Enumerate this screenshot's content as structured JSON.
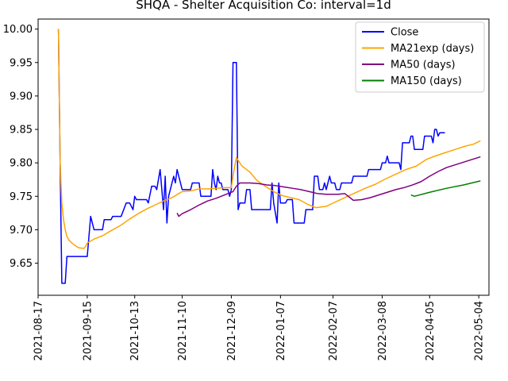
{
  "chart_data": {
    "type": "line",
    "title": "SHQA - Shelter Acquisition Co: interval=1d",
    "xlabel": "",
    "ylabel": "",
    "x_ticks": [
      "2021-08-17",
      "2021-09-15",
      "2021-10-13",
      "2021-11-10",
      "2021-12-09",
      "2022-01-07",
      "2022-02-07",
      "2022-03-08",
      "2022-04-05",
      "2022-05-04"
    ],
    "y_ticks": [
      "9.65",
      "9.70",
      "9.75",
      "9.80",
      "9.85",
      "9.90",
      "9.95",
      "10.00"
    ],
    "xlim": [
      "2021-08-17",
      "2022-05-10"
    ],
    "ylim": [
      9.602,
      10.015
    ],
    "grid": false,
    "legend_position": "top-right",
    "series": [
      {
        "name": "Close",
        "color": "#0000ff",
        "points": [
          [
            "2021-08-29",
            10.0
          ],
          [
            "2021-08-30",
            9.8
          ],
          [
            "2021-08-31",
            9.62
          ],
          [
            "2021-09-02",
            9.62
          ],
          [
            "2021-09-03",
            9.66
          ],
          [
            "2021-09-08",
            9.66
          ],
          [
            "2021-09-13",
            9.66
          ],
          [
            "2021-09-15",
            9.66
          ],
          [
            "2021-09-16",
            9.69
          ],
          [
            "2021-09-17",
            9.72
          ],
          [
            "2021-09-19",
            9.7
          ],
          [
            "2021-09-24",
            9.7
          ],
          [
            "2021-09-25",
            9.715
          ],
          [
            "2021-09-29",
            9.715
          ],
          [
            "2021-09-30",
            9.72
          ],
          [
            "2021-10-05",
            9.72
          ],
          [
            "2021-10-08",
            9.74
          ],
          [
            "2021-10-10",
            9.74
          ],
          [
            "2021-10-12",
            9.73
          ],
          [
            "2021-10-13",
            9.75
          ],
          [
            "2021-10-14",
            9.745
          ],
          [
            "2021-10-20",
            9.745
          ],
          [
            "2021-10-21",
            9.74
          ],
          [
            "2021-10-23",
            9.765
          ],
          [
            "2021-10-25",
            9.765
          ],
          [
            "2021-10-26",
            9.76
          ],
          [
            "2021-10-28",
            9.79
          ],
          [
            "2021-10-29",
            9.76
          ],
          [
            "2021-10-30",
            9.73
          ],
          [
            "2021-10-31",
            9.78
          ],
          [
            "2021-11-01",
            9.71
          ],
          [
            "2021-11-02",
            9.75
          ],
          [
            "2021-11-04",
            9.77
          ],
          [
            "2021-11-05",
            9.78
          ],
          [
            "2021-11-06",
            9.77
          ],
          [
            "2021-11-07",
            9.79
          ],
          [
            "2021-11-08",
            9.78
          ],
          [
            "2021-11-10",
            9.76
          ],
          [
            "2021-11-15",
            9.76
          ],
          [
            "2021-11-16",
            9.77
          ],
          [
            "2021-11-20",
            9.77
          ],
          [
            "2021-11-21",
            9.75
          ],
          [
            "2021-11-27",
            9.75
          ],
          [
            "2021-11-28",
            9.79
          ],
          [
            "2021-11-29",
            9.77
          ],
          [
            "2021-11-30",
            9.76
          ],
          [
            "2021-12-01",
            9.78
          ],
          [
            "2021-12-02",
            9.77
          ],
          [
            "2021-12-03",
            9.77
          ],
          [
            "2021-12-04",
            9.76
          ],
          [
            "2021-12-07",
            9.76
          ],
          [
            "2021-12-08",
            9.75
          ],
          [
            "2021-12-09",
            9.76
          ],
          [
            "2021-12-10",
            9.95
          ],
          [
            "2021-12-12",
            9.95
          ],
          [
            "2021-12-13",
            9.73
          ],
          [
            "2021-12-14",
            9.74
          ],
          [
            "2021-12-17",
            9.74
          ],
          [
            "2021-12-18",
            9.76
          ],
          [
            "2021-12-20",
            9.76
          ],
          [
            "2021-12-21",
            9.73
          ],
          [
            "2022-01-01",
            9.73
          ],
          [
            "2022-01-02",
            9.77
          ],
          [
            "2022-01-03",
            9.74
          ],
          [
            "2022-01-05",
            9.71
          ],
          [
            "2022-01-06",
            9.77
          ],
          [
            "2022-01-07",
            9.74
          ],
          [
            "2022-01-10",
            9.74
          ],
          [
            "2022-01-11",
            9.745
          ],
          [
            "2022-01-14",
            9.745
          ],
          [
            "2022-01-15",
            9.71
          ],
          [
            "2022-01-21",
            9.71
          ],
          [
            "2022-01-22",
            9.73
          ],
          [
            "2022-01-26",
            9.73
          ],
          [
            "2022-01-27",
            9.78
          ],
          [
            "2022-01-29",
            9.78
          ],
          [
            "2022-01-30",
            9.76
          ],
          [
            "2022-02-01",
            9.76
          ],
          [
            "2022-02-02",
            9.77
          ],
          [
            "2022-02-03",
            9.76
          ],
          [
            "2022-02-05",
            9.78
          ],
          [
            "2022-02-06",
            9.77
          ],
          [
            "2022-02-08",
            9.77
          ],
          [
            "2022-02-09",
            9.76
          ],
          [
            "2022-02-11",
            9.76
          ],
          [
            "2022-02-12",
            9.77
          ],
          [
            "2022-02-18",
            9.77
          ],
          [
            "2022-02-19",
            9.78
          ],
          [
            "2022-02-27",
            9.78
          ],
          [
            "2022-02-28",
            9.79
          ],
          [
            "2022-03-07",
            9.79
          ],
          [
            "2022-03-08",
            9.8
          ],
          [
            "2022-03-10",
            9.8
          ],
          [
            "2022-03-11",
            9.81
          ],
          [
            "2022-03-12",
            9.8
          ],
          [
            "2022-03-18",
            9.8
          ],
          [
            "2022-03-19",
            9.79
          ],
          [
            "2022-03-20",
            9.83
          ],
          [
            "2022-03-24",
            9.83
          ],
          [
            "2022-03-25",
            9.84
          ],
          [
            "2022-03-26",
            9.84
          ],
          [
            "2022-03-27",
            9.82
          ],
          [
            "2022-04-01",
            9.82
          ],
          [
            "2022-04-02",
            9.84
          ],
          [
            "2022-04-06",
            9.84
          ],
          [
            "2022-04-07",
            9.83
          ],
          [
            "2022-04-08",
            9.85
          ],
          [
            "2022-04-09",
            9.85
          ],
          [
            "2022-04-10",
            9.84
          ],
          [
            "2022-04-11",
            9.845
          ],
          [
            "2022-04-14",
            9.845
          ]
        ]
      },
      {
        "name": "MA21exp (days)",
        "color": "#ffa500",
        "points": [
          [
            "2021-08-29",
            10.0
          ],
          [
            "2021-08-30",
            9.8
          ],
          [
            "2021-08-31",
            9.74
          ],
          [
            "2021-09-01",
            9.715
          ],
          [
            "2021-09-02",
            9.7
          ],
          [
            "2021-09-03",
            9.69
          ],
          [
            "2021-09-04",
            9.685
          ],
          [
            "2021-09-06",
            9.68
          ],
          [
            "2021-09-08",
            9.676
          ],
          [
            "2021-09-10",
            9.673
          ],
          [
            "2021-09-13",
            9.672
          ],
          [
            "2021-09-14",
            9.675
          ],
          [
            "2021-09-15",
            9.68
          ],
          [
            "2021-09-17",
            9.683
          ],
          [
            "2021-09-19",
            9.686
          ],
          [
            "2021-09-24",
            9.691
          ],
          [
            "2021-09-28",
            9.697
          ],
          [
            "2021-10-05",
            9.707
          ],
          [
            "2021-10-10",
            9.716
          ],
          [
            "2021-10-15",
            9.724
          ],
          [
            "2021-10-20",
            9.731
          ],
          [
            "2021-10-25",
            9.737
          ],
          [
            "2021-10-30",
            9.743
          ],
          [
            "2021-11-04",
            9.748
          ],
          [
            "2021-11-08",
            9.754
          ],
          [
            "2021-11-10",
            9.757
          ],
          [
            "2021-11-15",
            9.758
          ],
          [
            "2021-11-20",
            9.761
          ],
          [
            "2021-11-25",
            9.761
          ],
          [
            "2021-12-01",
            9.762
          ],
          [
            "2021-12-06",
            9.763
          ],
          [
            "2021-12-09",
            9.763
          ],
          [
            "2021-12-10",
            9.78
          ],
          [
            "2021-12-11",
            9.795
          ],
          [
            "2021-12-12",
            9.808
          ],
          [
            "2021-12-15",
            9.796
          ],
          [
            "2021-12-20",
            9.786
          ],
          [
            "2021-12-24",
            9.774
          ],
          [
            "2021-12-29",
            9.765
          ],
          [
            "2022-01-03",
            9.757
          ],
          [
            "2022-01-08",
            9.751
          ],
          [
            "2022-01-13",
            9.748
          ],
          [
            "2022-01-18",
            9.745
          ],
          [
            "2022-01-23",
            9.738
          ],
          [
            "2022-01-28",
            9.733
          ],
          [
            "2022-02-03",
            9.735
          ],
          [
            "2022-02-08",
            9.741
          ],
          [
            "2022-02-14",
            9.748
          ],
          [
            "2022-02-20",
            9.755
          ],
          [
            "2022-02-26",
            9.762
          ],
          [
            "2022-03-04",
            9.768
          ],
          [
            "2022-03-10",
            9.776
          ],
          [
            "2022-03-16",
            9.783
          ],
          [
            "2022-03-22",
            9.79
          ],
          [
            "2022-03-28",
            9.795
          ],
          [
            "2022-04-03",
            9.805
          ],
          [
            "2022-04-08",
            9.81
          ],
          [
            "2022-04-14",
            9.815
          ],
          [
            "2022-04-20",
            9.82
          ],
          [
            "2022-04-26",
            9.825
          ],
          [
            "2022-05-01",
            9.828
          ],
          [
            "2022-05-05",
            9.833
          ]
        ]
      },
      {
        "name": "MA50 (days)",
        "color": "#800080",
        "points": [
          [
            "2021-11-07",
            9.725
          ],
          [
            "2021-11-08",
            9.72
          ],
          [
            "2021-11-10",
            9.724
          ],
          [
            "2021-11-15",
            9.73
          ],
          [
            "2021-11-20",
            9.737
          ],
          [
            "2021-11-25",
            9.743
          ],
          [
            "2021-11-30",
            9.747
          ],
          [
            "2021-12-05",
            9.752
          ],
          [
            "2021-12-10",
            9.757
          ],
          [
            "2021-12-12",
            9.765
          ],
          [
            "2021-12-14",
            9.77
          ],
          [
            "2021-12-20",
            9.77
          ],
          [
            "2021-12-25",
            9.769
          ],
          [
            "2021-12-30",
            9.767
          ],
          [
            "2022-01-04",
            9.766
          ],
          [
            "2022-01-09",
            9.764
          ],
          [
            "2022-01-14",
            9.762
          ],
          [
            "2022-01-19",
            9.76
          ],
          [
            "2022-01-24",
            9.757
          ],
          [
            "2022-01-29",
            9.754
          ],
          [
            "2022-02-03",
            9.753
          ],
          [
            "2022-02-10",
            9.753
          ],
          [
            "2022-02-14",
            9.754
          ],
          [
            "2022-02-17",
            9.748
          ],
          [
            "2022-02-19",
            9.744
          ],
          [
            "2022-02-24",
            9.745
          ],
          [
            "2022-03-01",
            9.748
          ],
          [
            "2022-03-06",
            9.752
          ],
          [
            "2022-03-11",
            9.756
          ],
          [
            "2022-03-16",
            9.76
          ],
          [
            "2022-03-21",
            9.763
          ],
          [
            "2022-03-26",
            9.767
          ],
          [
            "2022-03-31",
            9.772
          ],
          [
            "2022-04-05",
            9.78
          ],
          [
            "2022-04-10",
            9.787
          ],
          [
            "2022-04-15",
            9.793
          ],
          [
            "2022-04-20",
            9.797
          ],
          [
            "2022-04-25",
            9.801
          ],
          [
            "2022-04-30",
            9.805
          ],
          [
            "2022-05-05",
            9.809
          ]
        ]
      },
      {
        "name": "MA150 (days)",
        "color": "#008000",
        "points": [
          [
            "2022-03-25",
            9.752
          ],
          [
            "2022-03-27",
            9.75
          ],
          [
            "2022-04-05",
            9.756
          ],
          [
            "2022-04-15",
            9.762
          ],
          [
            "2022-04-25",
            9.767
          ],
          [
            "2022-05-05",
            9.773
          ]
        ]
      }
    ]
  }
}
